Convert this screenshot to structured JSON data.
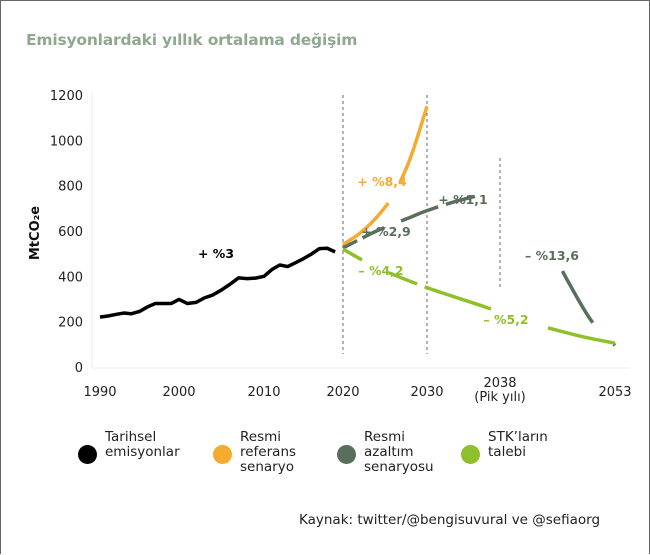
{
  "title": "Emisyonlardaki yıllık ortalama değişim",
  "source": "Kaynak: twitter/@bengisuvural ve @sefiaorg",
  "colors": {
    "historical": "#000000",
    "reference": "#f5ab2f",
    "reduction": "#5a6e5c",
    "ngo": "#8fbf2a",
    "title": "#8fa88f"
  },
  "legend": [
    {
      "key": "historical",
      "lines": [
        "Tarihsel",
        "emisyonlar"
      ]
    },
    {
      "key": "reference",
      "lines": [
        "Resmi",
        "referans",
        "senaryo"
      ]
    },
    {
      "key": "reduction",
      "lines": [
        "Resmi",
        "azaltım",
        "senaryosu"
      ]
    },
    {
      "key": "ngo",
      "lines": [
        "STK’ların",
        "talebi"
      ]
    }
  ],
  "chart_data": {
    "type": "line",
    "title": "Emisyonlardaki yıllık ortalama değişim",
    "xlabel": "",
    "ylabel": "MtCO₂e",
    "ylim": [
      0,
      1200
    ],
    "yticks": [
      0,
      200,
      400,
      600,
      800,
      1000,
      1200
    ],
    "xticks": [
      {
        "value": 1990,
        "label": "1990"
      },
      {
        "value": 2000,
        "label": "2000"
      },
      {
        "value": 2010,
        "label": "2010"
      },
      {
        "value": 2020,
        "label": "2020"
      },
      {
        "value": 2030,
        "label": "2030"
      },
      {
        "value": 2038,
        "label": "2038",
        "sublabel": "(Pik yılı)"
      },
      {
        "value": 2053,
        "label": "2053"
      }
    ],
    "grid": false,
    "reference_lines": [
      2020,
      2030,
      2038
    ],
    "series": [
      {
        "key": "historical",
        "name": "Tarihsel emisyonlar",
        "style": "solid",
        "x": [
          1990,
          1991,
          1992,
          1993,
          1994,
          1995,
          1996,
          1997,
          1998,
          1999,
          2000,
          2001,
          2002,
          2003,
          2004,
          2005,
          2006,
          2007,
          2008,
          2009,
          2010,
          2011,
          2012,
          2013,
          2014,
          2015,
          2016,
          2017,
          2018,
          2019
        ],
        "y": [
          220,
          225,
          232,
          238,
          235,
          245,
          265,
          280,
          280,
          280,
          298,
          280,
          285,
          305,
          318,
          340,
          365,
          393,
          390,
          392,
          400,
          430,
          450,
          443,
          460,
          478,
          498,
          522,
          524,
          508
        ]
      },
      {
        "key": "reference",
        "name": "Resmi referans senaryo",
        "style": "solid",
        "x": [
          2020,
          2022,
          2024,
          2026,
          2028,
          2030
        ],
        "y": [
          540,
          590,
          660,
          760,
          920,
          1150
        ]
      },
      {
        "key": "reduction",
        "name": "Resmi azaltım senaryosu",
        "style": "dashed-then-solid",
        "x": [
          2020,
          2024,
          2028,
          2030,
          2034,
          2038,
          2041,
          2044,
          2047,
          2050,
          2053
        ],
        "y": [
          525,
          600,
          660,
          690,
          740,
          770,
          720,
          560,
          370,
          200,
          95
        ]
      },
      {
        "key": "ngo",
        "name": "STK’ların talebi",
        "style": "dashed-then-solid",
        "x": [
          2020,
          2024,
          2030,
          2036,
          2042,
          2048,
          2053
        ],
        "y": [
          520,
          440,
          350,
          270,
          195,
          140,
          105
        ]
      }
    ],
    "annotations": [
      {
        "text": "+ %3",
        "series": "historical"
      },
      {
        "text": "+ %8,4",
        "series": "reference"
      },
      {
        "text": "+ %2,9",
        "series": "reduction"
      },
      {
        "text": "+ %1,1",
        "series": "reduction"
      },
      {
        "text": "– %13,6",
        "series": "reduction"
      },
      {
        "text": "– %4,2",
        "series": "ngo"
      },
      {
        "text": "– %5,2",
        "series": "ngo"
      }
    ]
  }
}
